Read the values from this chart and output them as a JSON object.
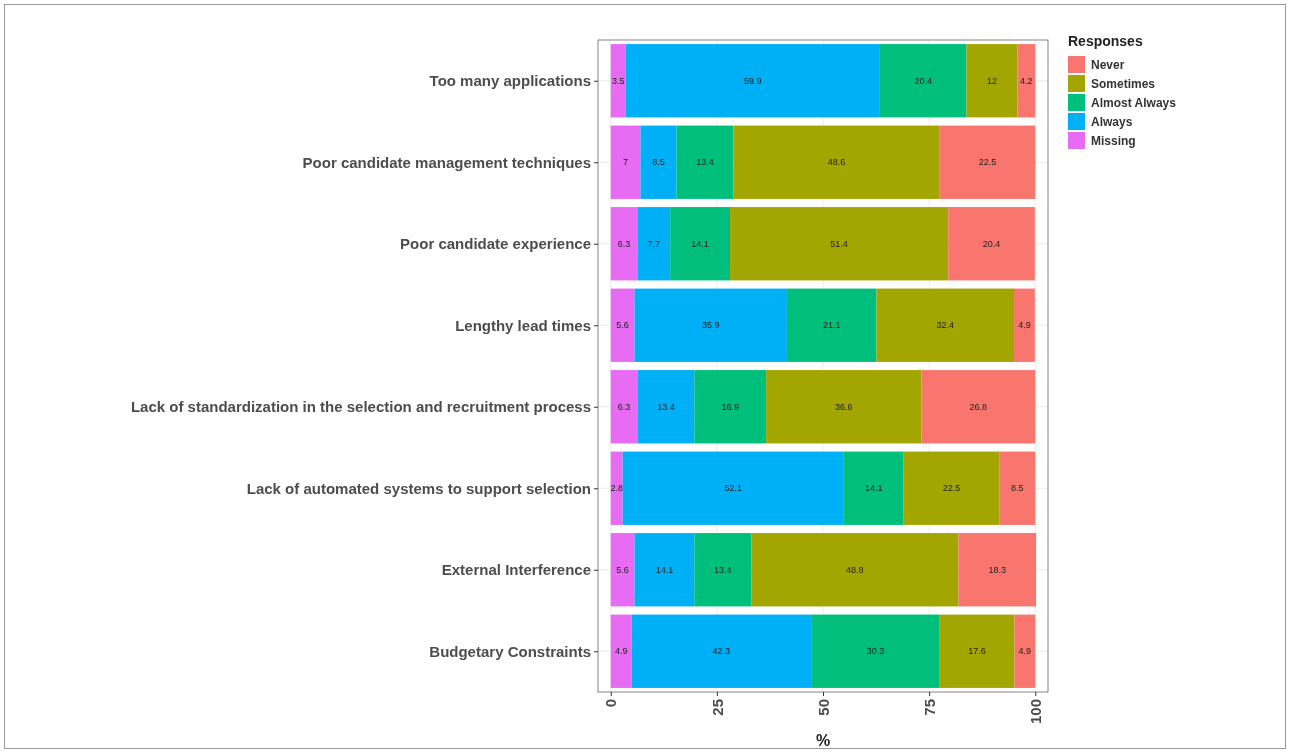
{
  "chart_data": {
    "type": "bar",
    "orientation": "horizontal",
    "stacked": true,
    "xlabel": "%",
    "legend_title": "Responses",
    "categories": [
      "Too many applications",
      "Poor candidate management techniques",
      "Poor candidate experience",
      "Lengthy lead times",
      "Lack of standardization in the selection and recruitment process",
      "Lack of automated systems to support selection",
      "External Interference",
      "Budgetary Constraints"
    ],
    "series": [
      {
        "name": "Missing",
        "color": "#e76bf3",
        "values": [
          3.5,
          7,
          6.3,
          5.6,
          6.3,
          2.8,
          5.6,
          4.9
        ]
      },
      {
        "name": "Always",
        "color": "#00b0f6",
        "values": [
          59.9,
          8.5,
          7.7,
          35.9,
          13.4,
          52.1,
          14.1,
          42.3
        ]
      },
      {
        "name": "Almost Always",
        "color": "#00bf7d",
        "values": [
          20.4,
          13.4,
          14.1,
          21.1,
          16.9,
          14.1,
          13.4,
          30.3
        ]
      },
      {
        "name": "Sometimes",
        "color": "#a3a500",
        "values": [
          12,
          48.6,
          51.4,
          32.4,
          36.6,
          22.5,
          48.8,
          17.6
        ]
      },
      {
        "name": "Never",
        "color": "#f8766d",
        "values": [
          4.2,
          22.5,
          20.4,
          4.9,
          26.8,
          8.5,
          18.3,
          4.9
        ]
      }
    ],
    "xlim": [
      -3,
      103
    ],
    "xticks": [
      0,
      25,
      50,
      75,
      100
    ],
    "grid": true,
    "legend": "right",
    "data_labels": true
  }
}
